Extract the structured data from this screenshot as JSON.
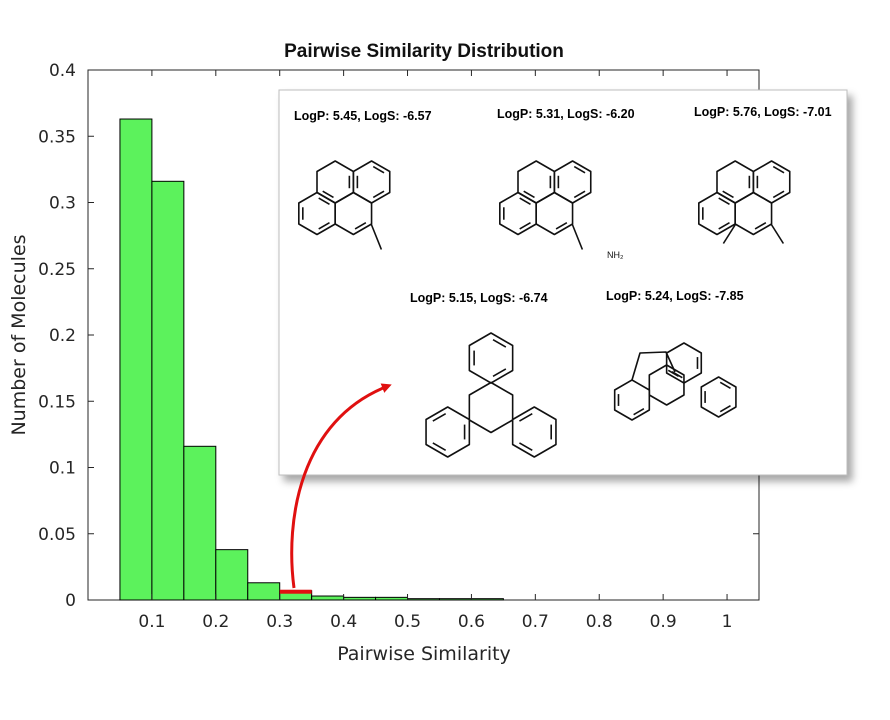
{
  "chart_data": {
    "type": "bar",
    "title": "Pairwise Similarity Distribution",
    "xlabel": "Pairwise Similarity",
    "ylabel": "Number of Molecules",
    "xlim": [
      0,
      1.05
    ],
    "ylim": [
      0,
      0.4
    ],
    "xticks": [
      0.1,
      0.2,
      0.3,
      0.4,
      0.5,
      0.6,
      0.7,
      0.8,
      0.9,
      1
    ],
    "xtick_labels": [
      "0.1",
      "0.2",
      "0.3",
      "0.4",
      "0.5",
      "0.6",
      "0.7",
      "0.8",
      "0.9",
      "1"
    ],
    "yticks": [
      0,
      0.05,
      0.1,
      0.15,
      0.2,
      0.25,
      0.3,
      0.35,
      0.4
    ],
    "ytick_labels": [
      "0",
      "0.05",
      "0.1",
      "0.15",
      "0.2",
      "0.25",
      "0.3",
      "0.35",
      "0.4"
    ],
    "bin_width": 0.05,
    "bins": [
      {
        "x0": 0.05,
        "x1": 0.1,
        "value": 0.363
      },
      {
        "x0": 0.1,
        "x1": 0.15,
        "value": 0.316
      },
      {
        "x0": 0.15,
        "x1": 0.2,
        "value": 0.116
      },
      {
        "x0": 0.2,
        "x1": 0.25,
        "value": 0.038
      },
      {
        "x0": 0.25,
        "x1": 0.3,
        "value": 0.013
      },
      {
        "x0": 0.3,
        "x1": 0.35,
        "value": 0.007
      },
      {
        "x0": 0.35,
        "x1": 0.4,
        "value": 0.003
      },
      {
        "x0": 0.4,
        "x1": 0.45,
        "value": 0.002
      },
      {
        "x0": 0.45,
        "x1": 0.5,
        "value": 0.002
      },
      {
        "x0": 0.5,
        "x1": 0.55,
        "value": 0.001
      },
      {
        "x0": 0.55,
        "x1": 0.6,
        "value": 0.001
      },
      {
        "x0": 0.6,
        "x1": 0.65,
        "value": 0.001
      }
    ],
    "bar_color": "#5cf25c",
    "highlight_color": "#e01010",
    "highlight_bin": 5,
    "grid": false,
    "annotations": [
      {
        "label": "LogP: 5.45, LogS: -6.57",
        "molecule": "methylchrysene"
      },
      {
        "label": "LogP: 5.31, LogS: -6.20",
        "molecule": "aminochrysene"
      },
      {
        "label": "LogP: 5.76, LogS: -7.01",
        "molecule": "dimethylchrysene"
      },
      {
        "label": "LogP: 5.15, LogS: -6.74",
        "molecule": "triphenylene"
      },
      {
        "label": "LogP: 5.24, LogS: -7.85",
        "molecule": "cyclopenta-fused arene"
      }
    ],
    "amine_label": "NH₂"
  }
}
